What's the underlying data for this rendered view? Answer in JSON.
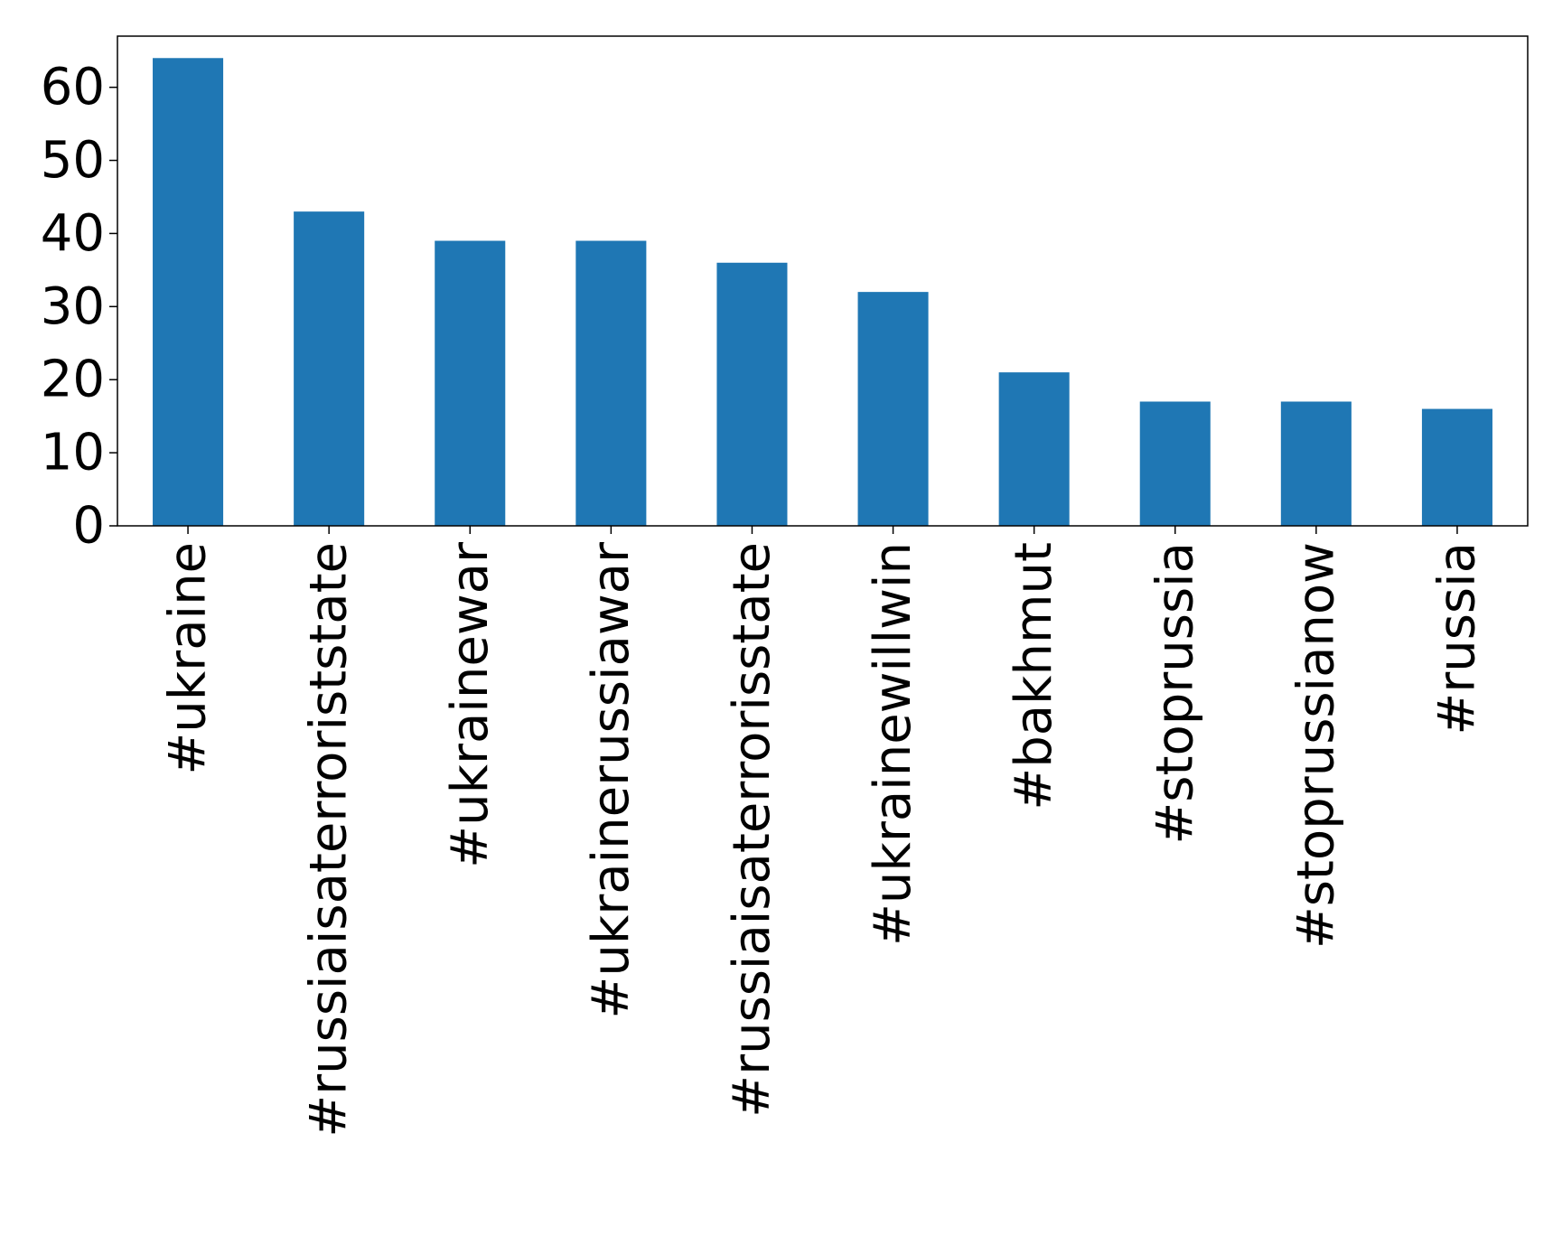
{
  "chart_data": {
    "type": "bar",
    "title": "",
    "xlabel": "",
    "ylabel": "",
    "categories": [
      "#ukraine",
      "#russiaisaterroriststate",
      "#ukrainewar",
      "#ukrainerussiawar",
      "#russiaisaterrorisstate",
      "#ukrainewillwin",
      "#bakhmut",
      "#stoprussia",
      "#stoprussianow",
      "#russia"
    ],
    "values": [
      64,
      43,
      39,
      39,
      36,
      32,
      21,
      17,
      17,
      16
    ],
    "ylim": [
      0,
      67
    ],
    "yticks": [
      0,
      10,
      20,
      30,
      40,
      50,
      60
    ],
    "grid": false,
    "legend": "none",
    "bar_color": "#1f77b4"
  }
}
